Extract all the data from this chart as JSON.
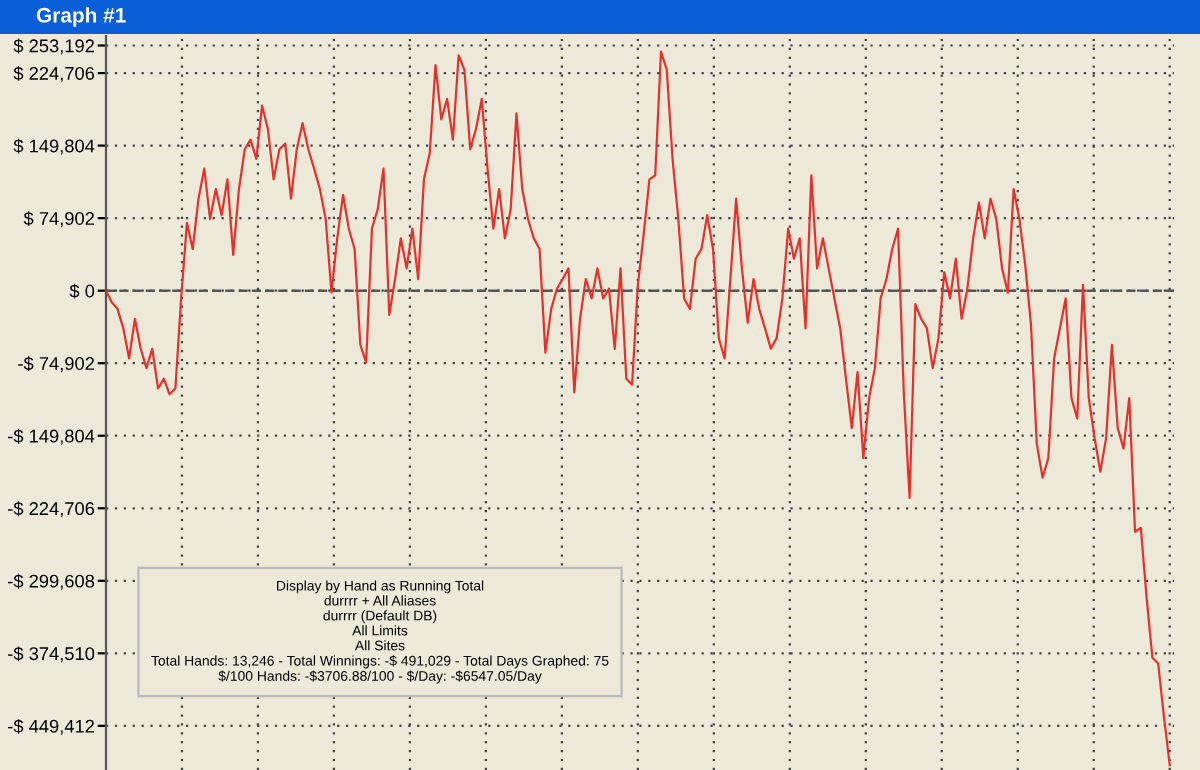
{
  "chart_data": {
    "type": "line",
    "title": "Graph #1",
    "categories": [
      null,
      null,
      null,
      null,
      null,
      null,
      null,
      null,
      null,
      null,
      null,
      null,
      null,
      null,
      null,
      null,
      null,
      null,
      null,
      null,
      null,
      null,
      null,
      null,
      null,
      null,
      null,
      null,
      null,
      null,
      null,
      null,
      null,
      null,
      null,
      null,
      null,
      null,
      null,
      null,
      null,
      null,
      null,
      null,
      null,
      null,
      null,
      null,
      null,
      null,
      null,
      null,
      null,
      null,
      null,
      null,
      null,
      null,
      null,
      null,
      null,
      null,
      null,
      null,
      null,
      null,
      null,
      null,
      null,
      null,
      null,
      null,
      null,
      null,
      null,
      null,
      null,
      null,
      null,
      null,
      null,
      null,
      null,
      null,
      null,
      null,
      null,
      null,
      null,
      null,
      null,
      null,
      null,
      null,
      null,
      null,
      null,
      null,
      null,
      null,
      null,
      null,
      null,
      null,
      null,
      null,
      null,
      null,
      null,
      null,
      null,
      null,
      null,
      null,
      null,
      null,
      null,
      null,
      null,
      null,
      null,
      null,
      null,
      null,
      null,
      null,
      null,
      null,
      null,
      null,
      null,
      null,
      null,
      null,
      null,
      null,
      null,
      null,
      null,
      null,
      null,
      null,
      null,
      null,
      null,
      null,
      null,
      null,
      null,
      null,
      null,
      null,
      null,
      null,
      null,
      null,
      null,
      null,
      null,
      null,
      null,
      null,
      null,
      null,
      null,
      null,
      null,
      null,
      null,
      null,
      null,
      null,
      null,
      null,
      null,
      null,
      null,
      null,
      null,
      null,
      null,
      null,
      null,
      null,
      null
    ],
    "series": [
      {
        "color": "#e5312c",
        "values": [
          0,
          -12000,
          -19000,
          -39000,
          -70000,
          -29000,
          -60000,
          -80000,
          -60000,
          -101000,
          -91000,
          -107000,
          -101000,
          -8000,
          70000,
          43000,
          95000,
          126000,
          74000,
          105000,
          78000,
          115000,
          37000,
          105000,
          146000,
          156000,
          136000,
          191000,
          167000,
          115000,
          146000,
          152000,
          95000,
          146000,
          173000,
          146000,
          126000,
          105000,
          74000,
          -2000,
          54000,
          99000,
          64000,
          43000,
          -56000,
          -74000,
          64000,
          84000,
          126000,
          -25000,
          12000,
          54000,
          23000,
          64000,
          12000,
          115000,
          142000,
          233000,
          177000,
          198000,
          156000,
          243000,
          228000,
          146000,
          167000,
          198000,
          126000,
          64000,
          105000,
          54000,
          84000,
          183000,
          105000,
          74000,
          54000,
          43000,
          -64000,
          -19000,
          2000,
          12000,
          23000,
          -105000,
          -29000,
          12000,
          -8000,
          23000,
          -8000,
          2000,
          -60000,
          23000,
          -91000,
          -97000,
          6000,
          58000,
          115000,
          119000,
          247000,
          228000,
          136000,
          74000,
          -8000,
          -19000,
          33000,
          43000,
          78000,
          43000,
          -49000,
          -70000,
          12000,
          95000,
          23000,
          -33000,
          12000,
          -19000,
          -39000,
          -60000,
          -49000,
          -8000,
          64000,
          33000,
          54000,
          -39000,
          119000,
          23000,
          54000,
          23000,
          -8000,
          -39000,
          -91000,
          -142000,
          -84000,
          -173000,
          -111000,
          -80000,
          -8000,
          12000,
          43000,
          64000,
          -105000,
          -214000,
          -14000,
          -29000,
          -39000,
          -80000,
          -49000,
          19000,
          -8000,
          33000,
          -29000,
          2000,
          54000,
          91000,
          54000,
          95000,
          74000,
          23000,
          -2000,
          105000,
          74000,
          27000,
          -35000,
          -158000,
          -193000,
          -173000,
          -70000,
          -39000,
          -8000,
          -111000,
          -132000,
          6000,
          -111000,
          -152000,
          -187000,
          -152000,
          -56000,
          -142000,
          -163000,
          -111000,
          -249000,
          -245000,
          -317000,
          -379000,
          -385000,
          -440000,
          -490000
        ]
      }
    ],
    "ylim": [
      -495000,
      263000
    ],
    "yticks": [
      {
        "value": 253192,
        "label": "$ 253,192"
      },
      {
        "value": 224706,
        "label": "$ 224,706"
      },
      {
        "value": 149804,
        "label": "$ 149,804"
      },
      {
        "value": 74902,
        "label": "$ 74,902"
      },
      {
        "value": 0,
        "label": "$ 0"
      },
      {
        "value": -74902,
        "label": "-$ 74,902"
      },
      {
        "value": -149804,
        "label": "-$ 149,804"
      },
      {
        "value": -224706,
        "label": "-$ 224,706"
      },
      {
        "value": -299608,
        "label": "-$ 299,608"
      },
      {
        "value": -374510,
        "label": "-$ 374,510"
      },
      {
        "value": -449412,
        "label": "-$ 449,412"
      }
    ],
    "tick_labels": "y",
    "grid": true,
    "ref_lines": [
      {
        "axis": "y",
        "value": 0,
        "line_style": "dashed",
        "color": "#555555"
      }
    ],
    "annotations": [
      "Display by Hand as Running Total",
      "durrrr + All Aliases",
      "durrrr (Default DB)",
      "All Limits",
      "All Sites",
      "Total Hands: 13,246 - Total Winnings: -$ 491,029 - Total Days Graphed: 75",
      "$/100 Hands: -$3706.88/100 - $/Day: -$6547.05/Day"
    ]
  }
}
